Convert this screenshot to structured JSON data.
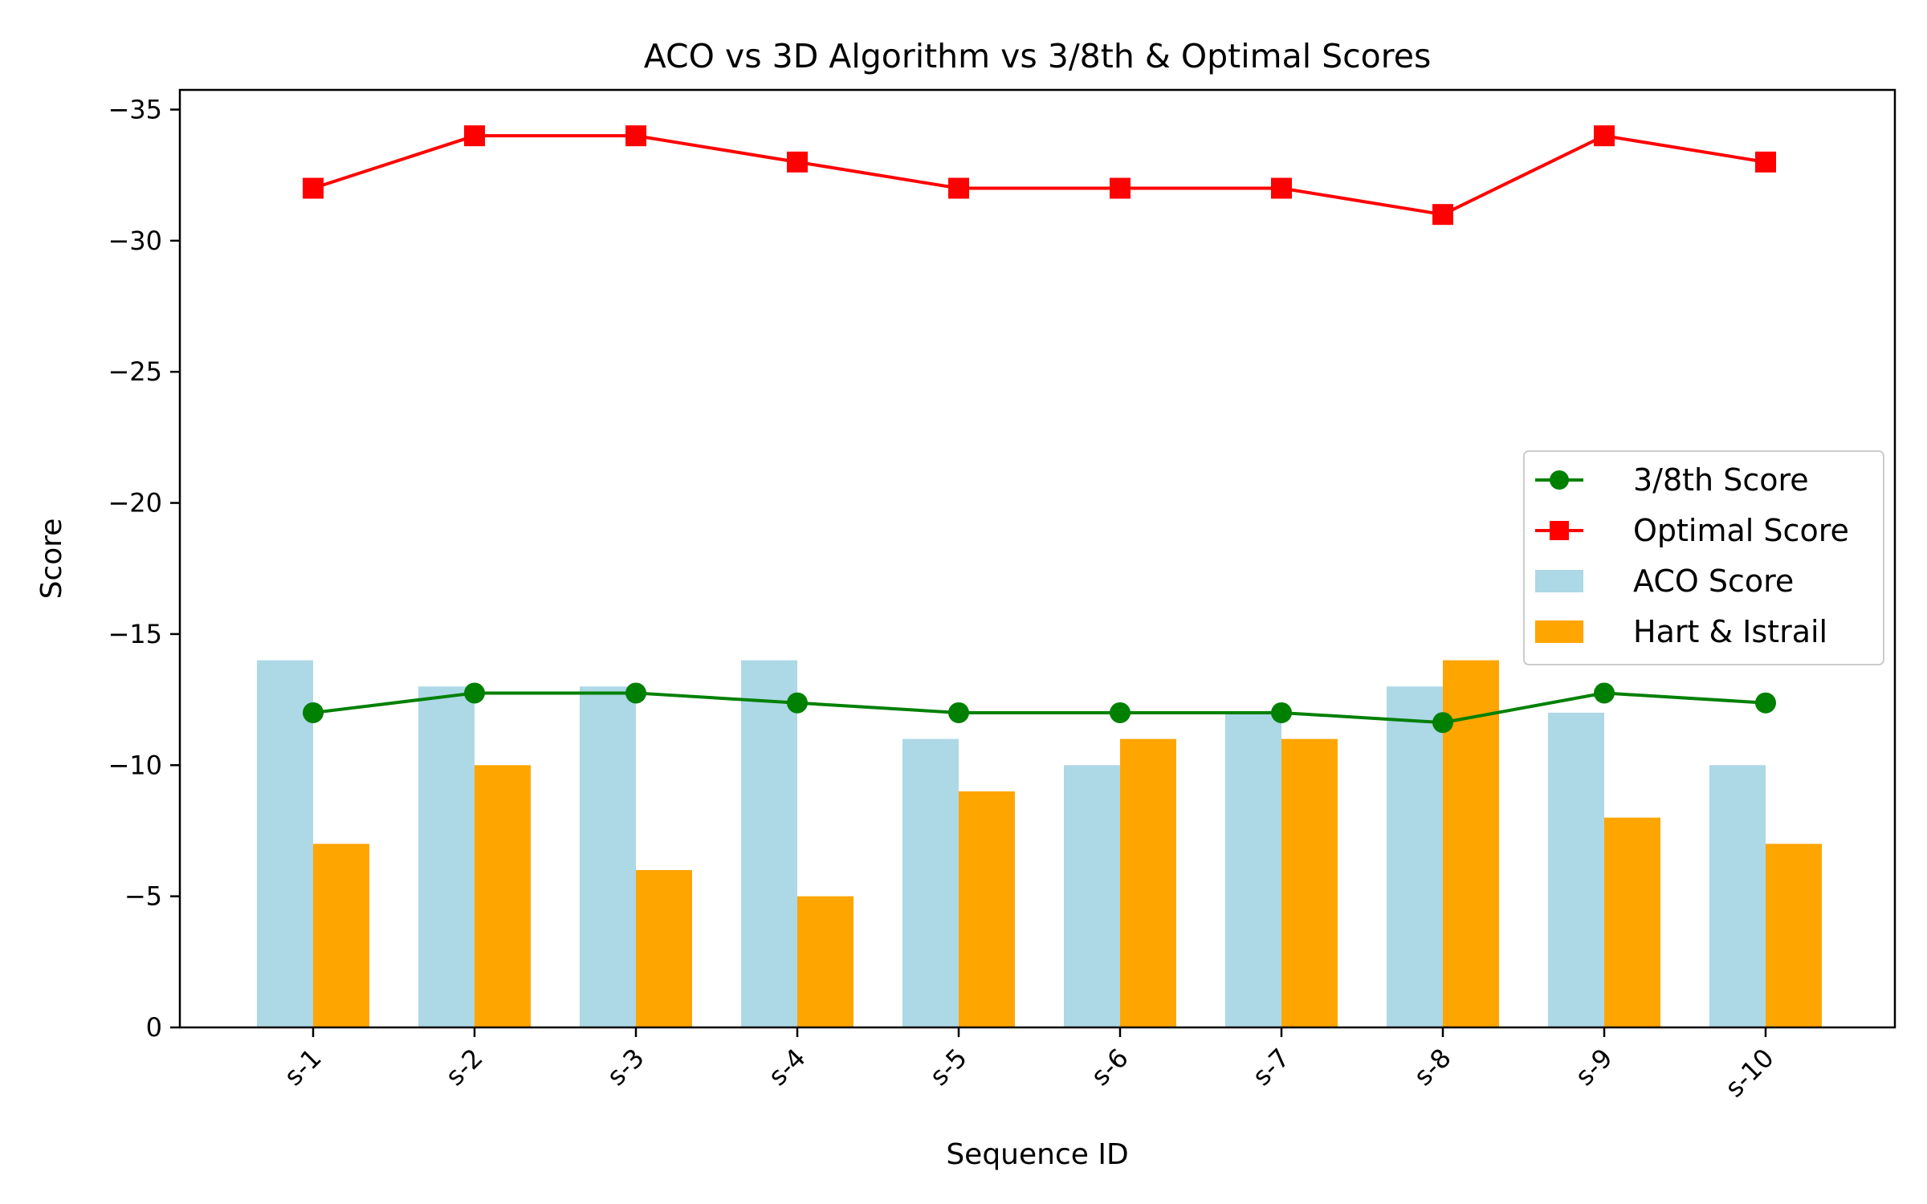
{
  "chart_data": {
    "type": "bar",
    "title": "ACO vs 3D Algorithm vs 3/8th & Optimal Scores",
    "xlabel": "Sequence ID",
    "ylabel": "Score",
    "categories": [
      "s-1",
      "s-2",
      "s-3",
      "s-4",
      "s-5",
      "s-6",
      "s-7",
      "s-8",
      "s-9",
      "s-10"
    ],
    "ylim": [
      0,
      -35.75
    ],
    "y_inverted": true,
    "y_ticks": [
      0,
      -5,
      -10,
      -15,
      -20,
      -25,
      -30,
      -35
    ],
    "y_tick_labels": [
      "0",
      "−5",
      "−10",
      "−15",
      "−20",
      "−25",
      "−30",
      "−35"
    ],
    "grid": false,
    "legend_position": "center-right",
    "bar_series": [
      {
        "name": "ACO Score",
        "color": "#add8e6",
        "values": [
          -14,
          -13,
          -13,
          -14,
          -11,
          -10,
          -12,
          -13,
          -12,
          -10
        ]
      },
      {
        "name": "Hart & Istrail",
        "color": "#ffa500",
        "values": [
          -7,
          -10,
          -6,
          -5,
          -9,
          -11,
          -11,
          -14,
          -8,
          -7
        ]
      }
    ],
    "line_series": [
      {
        "name": "3/8th Score",
        "color": "#008000",
        "marker": "circle",
        "values": [
          -12,
          -12.75,
          -12.75,
          -12.375,
          -12,
          -12,
          -12,
          -11.625,
          -12.75,
          -12.375
        ]
      },
      {
        "name": "Optimal Score",
        "color": "#ff0000",
        "marker": "square",
        "values": [
          -32,
          -34,
          -34,
          -33,
          -32,
          -32,
          -32,
          -31,
          -34,
          -33
        ]
      }
    ],
    "legend_order": [
      "3/8th Score",
      "Optimal Score",
      "ACO Score",
      "Hart & Istrail"
    ]
  }
}
